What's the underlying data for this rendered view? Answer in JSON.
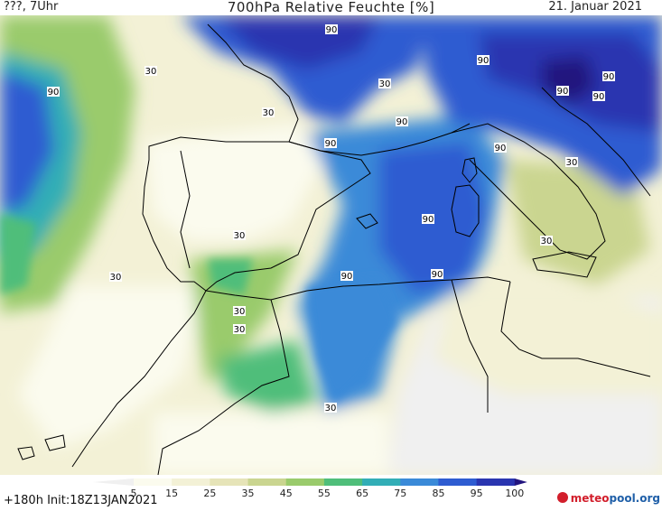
{
  "header": {
    "left": "???, 7Uhr",
    "title": "700hPa Relative Feuchte [%]",
    "date": "21. Januar 2021"
  },
  "footer": {
    "run": "+180h  Init:18Z13JAN2021",
    "brand_prefix": "meteo",
    "brand_suffix": "pool.org"
  },
  "legend": {
    "ticks": [
      "5",
      "15",
      "25",
      "35",
      "45",
      "55",
      "65",
      "75",
      "85",
      "95",
      "100"
    ],
    "colors": [
      "#f0f0f0",
      "#fbfbee",
      "#f3f1d6",
      "#e6e4b8",
      "#cad590",
      "#9acb6c",
      "#4fbe7a",
      "#32aeb6",
      "#3a8ad8",
      "#2e5cd1",
      "#2a35b0",
      "#22147e"
    ]
  },
  "contour_labels": {
    "values": [
      "90",
      "90",
      "30",
      "30",
      "30",
      "90",
      "90",
      "90",
      "90",
      "90",
      "90",
      "90",
      "90",
      "30",
      "30",
      "90",
      "90",
      "30",
      "30",
      "30",
      "30",
      "30"
    ]
  },
  "colors": {
    "humid_high": "#22147e",
    "humid_mid": "#2e5cd1",
    "dry": "#fbfbee",
    "coastline": "#000000",
    "brand_red": "#d21e2b",
    "brand_blue": "#1f5fa8"
  }
}
